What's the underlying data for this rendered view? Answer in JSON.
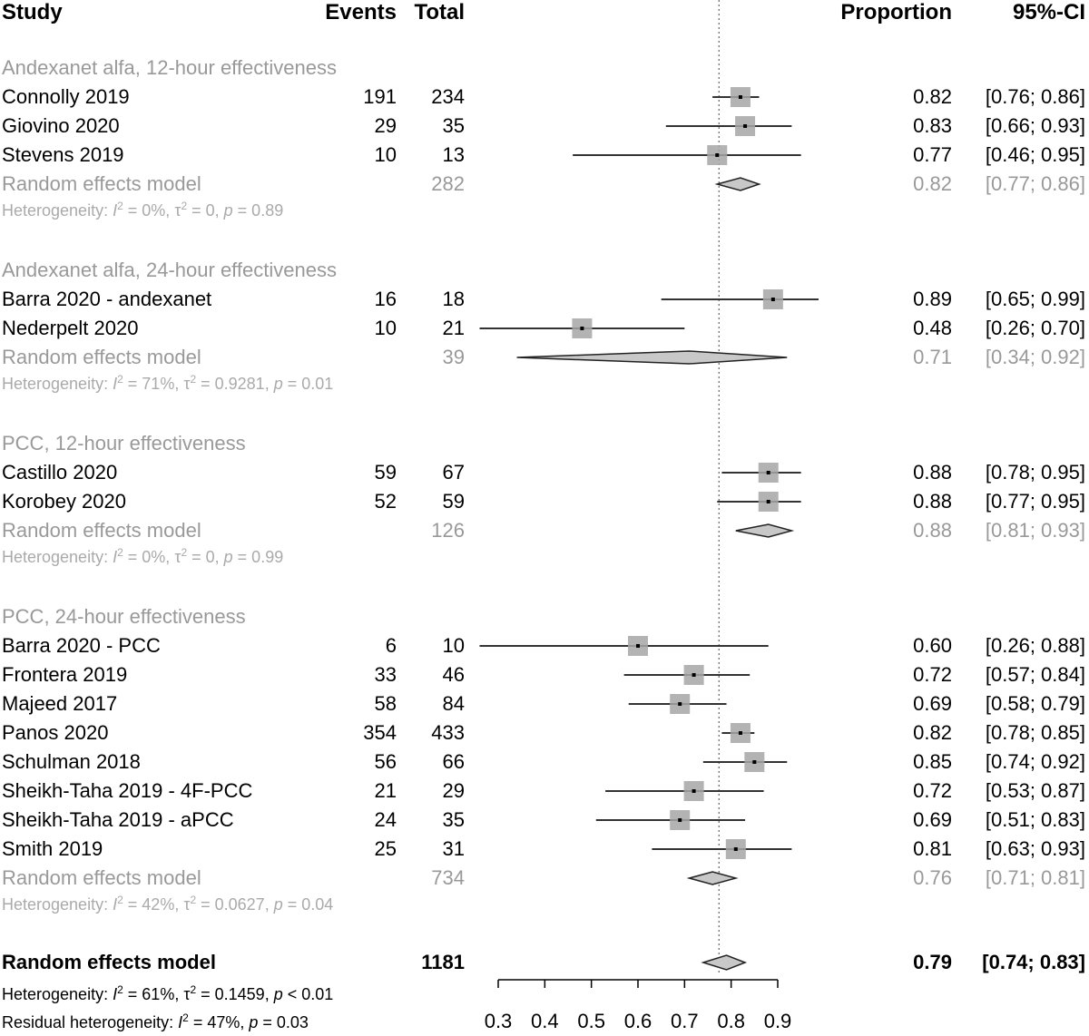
{
  "headers": {
    "study": "Study",
    "events": "Events",
    "total": "Total",
    "proportion": "Proportion",
    "ci": "95%-CI"
  },
  "chart_data": {
    "type": "forest",
    "reference_line": 0.7738,
    "xlim": [
      0.3,
      0.9
    ],
    "x_ticks": [
      "0.3",
      "0.4",
      "0.5",
      "0.6",
      "0.7",
      "0.8",
      "0.9"
    ],
    "colors": {
      "box": "#a6a6a6",
      "pooled_fill": "#c8c8c8",
      "group_text": "#999999"
    },
    "groups": [
      {
        "label": "Andexanet alfa, 12-hour effectiveness",
        "studies": [
          {
            "name": "Connolly 2019",
            "events": "191",
            "total": "234",
            "prop": 0.82,
            "lo": 0.76,
            "hi": 0.86,
            "prop_text": "0.82",
            "ci_text": "[0.76; 0.86]"
          },
          {
            "name": "Giovino 2020",
            "events": "29",
            "total": "35",
            "prop": 0.83,
            "lo": 0.66,
            "hi": 0.93,
            "prop_text": "0.83",
            "ci_text": "[0.66; 0.93]"
          },
          {
            "name": "Stevens 2019",
            "events": "10",
            "total": "13",
            "prop": 0.77,
            "lo": 0.46,
            "hi": 0.95,
            "prop_text": "0.77",
            "ci_text": "[0.46; 0.95]"
          }
        ],
        "pooled": {
          "label": "Random effects model",
          "total": "282",
          "prop": 0.82,
          "lo": 0.77,
          "hi": 0.86,
          "prop_text": "0.82",
          "ci_text": "[0.77; 0.86]"
        },
        "heterogeneity": {
          "pre": "Heterogeneity: ",
          "i": "I",
          "mid1": " = 0%, τ",
          "mid2": " = 0, ",
          "p": "p",
          "post": " = 0.89"
        }
      },
      {
        "label": "Andexanet alfa, 24-hour effectiveness",
        "studies": [
          {
            "name": "Barra 2020 - andexanet",
            "events": "16",
            "total": "18",
            "prop": 0.89,
            "lo": 0.65,
            "hi": 0.99,
            "prop_text": "0.89",
            "ci_text": "[0.65; 0.99]"
          },
          {
            "name": "Nederpelt 2020",
            "events": "10",
            "total": "21",
            "prop": 0.48,
            "lo": 0.26,
            "hi": 0.7,
            "prop_text": "0.48",
            "ci_text": "[0.26; 0.70]"
          }
        ],
        "pooled": {
          "label": "Random effects model",
          "total": "39",
          "prop": 0.71,
          "lo": 0.34,
          "hi": 0.92,
          "prop_text": "0.71",
          "ci_text": "[0.34; 0.92]"
        },
        "heterogeneity": {
          "pre": "Heterogeneity: ",
          "i": "I",
          "mid1": " = 71%, τ",
          "mid2": " = 0.9281, ",
          "p": "p",
          "post": " = 0.01"
        }
      },
      {
        "label": "PCC, 12-hour effectiveness",
        "studies": [
          {
            "name": "Castillo 2020",
            "events": "59",
            "total": "67",
            "prop": 0.88,
            "lo": 0.78,
            "hi": 0.95,
            "prop_text": "0.88",
            "ci_text": "[0.78; 0.95]"
          },
          {
            "name": "Korobey 2020",
            "events": "52",
            "total": "59",
            "prop": 0.88,
            "lo": 0.77,
            "hi": 0.95,
            "prop_text": "0.88",
            "ci_text": "[0.77; 0.95]"
          }
        ],
        "pooled": {
          "label": "Random effects model",
          "total": "126",
          "prop": 0.88,
          "lo": 0.81,
          "hi": 0.93,
          "prop_text": "0.88",
          "ci_text": "[0.81; 0.93]"
        },
        "heterogeneity": {
          "pre": "Heterogeneity: ",
          "i": "I",
          "mid1": " = 0%, τ",
          "mid2": " = 0, ",
          "p": "p",
          "post": " = 0.99"
        }
      },
      {
        "label": "PCC, 24-hour effectiveness",
        "studies": [
          {
            "name": "Barra 2020 - PCC",
            "events": "6",
            "total": "10",
            "prop": 0.6,
            "lo": 0.26,
            "hi": 0.88,
            "prop_text": "0.60",
            "ci_text": "[0.26; 0.88]"
          },
          {
            "name": "Frontera 2019",
            "events": "33",
            "total": "46",
            "prop": 0.72,
            "lo": 0.57,
            "hi": 0.84,
            "prop_text": "0.72",
            "ci_text": "[0.57; 0.84]"
          },
          {
            "name": "Majeed 2017",
            "events": "58",
            "total": "84",
            "prop": 0.69,
            "lo": 0.58,
            "hi": 0.79,
            "prop_text": "0.69",
            "ci_text": "[0.58; 0.79]"
          },
          {
            "name": "Panos 2020",
            "events": "354",
            "total": "433",
            "prop": 0.82,
            "lo": 0.78,
            "hi": 0.85,
            "prop_text": "0.82",
            "ci_text": "[0.78; 0.85]"
          },
          {
            "name": "Schulman 2018",
            "events": "56",
            "total": "66",
            "prop": 0.85,
            "lo": 0.74,
            "hi": 0.92,
            "prop_text": "0.85",
            "ci_text": "[0.74; 0.92]"
          },
          {
            "name": "Sheikh-Taha 2019 - 4F-PCC",
            "events": "21",
            "total": "29",
            "prop": 0.72,
            "lo": 0.53,
            "hi": 0.87,
            "prop_text": "0.72",
            "ci_text": "[0.53; 0.87]"
          },
          {
            "name": "Sheikh-Taha 2019 - aPCC",
            "events": "24",
            "total": "35",
            "prop": 0.69,
            "lo": 0.51,
            "hi": 0.83,
            "prop_text": "0.69",
            "ci_text": "[0.51; 0.83]"
          },
          {
            "name": "Smith 2019",
            "events": "25",
            "total": "31",
            "prop": 0.81,
            "lo": 0.63,
            "hi": 0.93,
            "prop_text": "0.81",
            "ci_text": "[0.63; 0.93]"
          }
        ],
        "pooled": {
          "label": "Random effects model",
          "total": "734",
          "prop": 0.76,
          "lo": 0.71,
          "hi": 0.81,
          "prop_text": "0.76",
          "ci_text": "[0.71; 0.81]"
        },
        "heterogeneity": {
          "pre": "Heterogeneity: ",
          "i": "I",
          "mid1": " = 42%, τ",
          "mid2": " = 0.0627, ",
          "p": "p",
          "post": " = 0.04"
        }
      }
    ],
    "overall": {
      "label": "Random effects model",
      "total": "1181",
      "prop": 0.79,
      "lo": 0.74,
      "hi": 0.83,
      "prop_text": "0.79",
      "ci_text": "[0.74; 0.83]",
      "heterogeneity": {
        "pre": "Heterogeneity: ",
        "i": "I",
        "mid1": " = 61%, τ",
        "mid2": " = 0.1459, ",
        "p": "p",
        "post": " < 0.01"
      },
      "residual": {
        "pre": "Residual heterogeneity: ",
        "i": "I",
        "mid1": " = 47%, ",
        "p": "p",
        "post": " = 0.03"
      }
    }
  }
}
